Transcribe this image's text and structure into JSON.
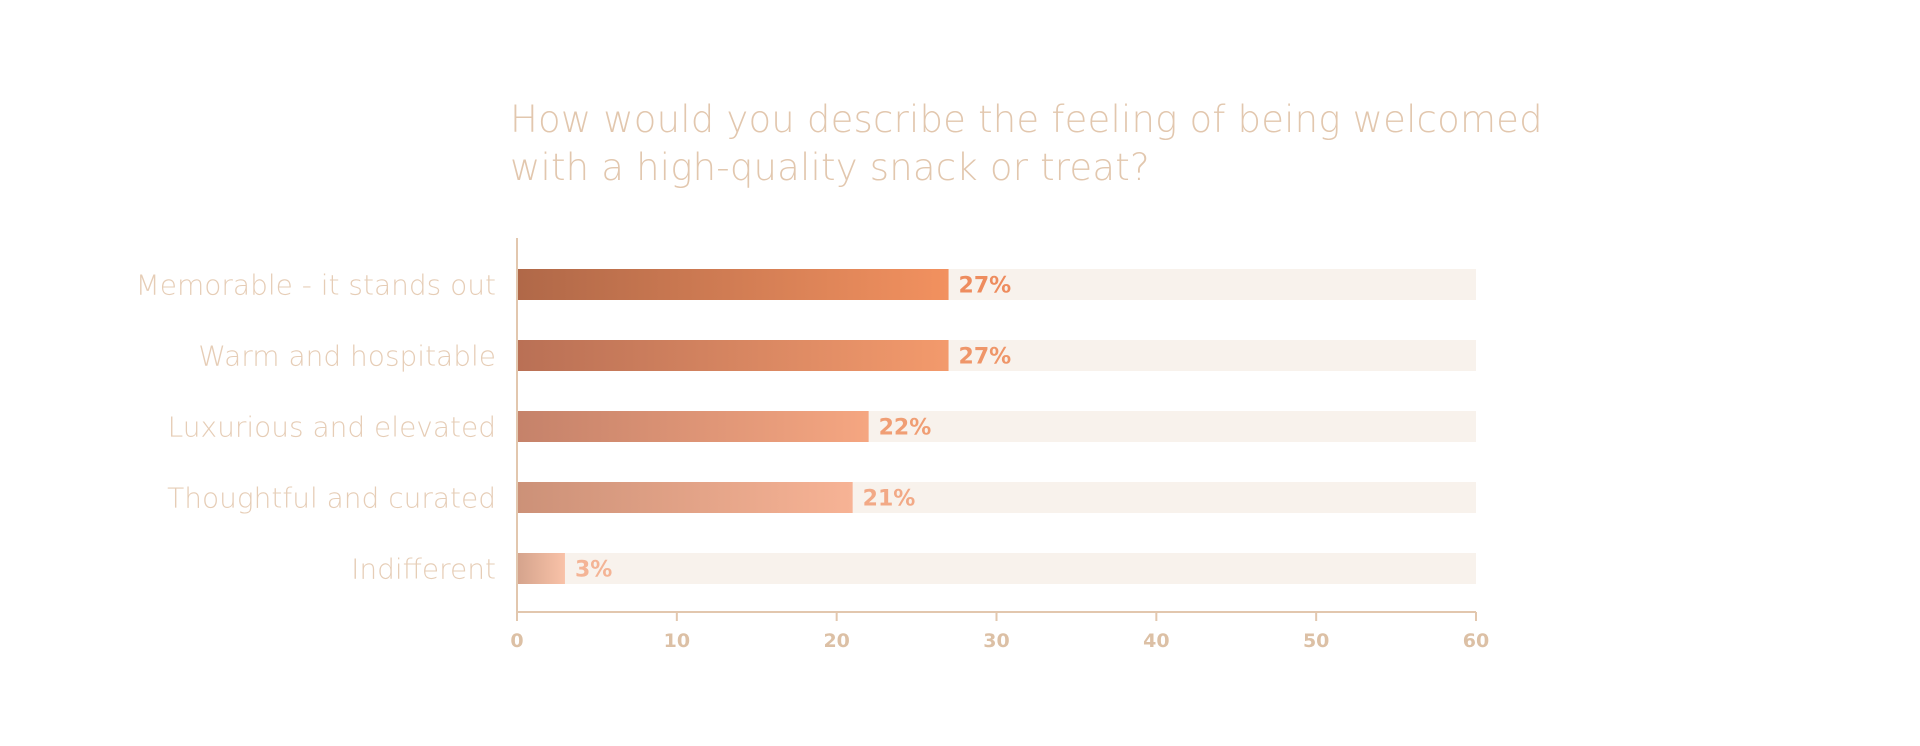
{
  "chart_data": {
    "type": "bar",
    "orientation": "horizontal",
    "title": "How would you describe the feeling of being welcomed with a high-quality snack or treat?",
    "categories": [
      "Memorable - it stands out",
      "Warm and hospitable",
      "Luxurious and elevated",
      "Thoughtful and curated",
      "Indifferent"
    ],
    "values": [
      27,
      27,
      22,
      21,
      3
    ],
    "value_labels": [
      "27%",
      "27%",
      "22%",
      "21%",
      "3%"
    ],
    "xlim": [
      0,
      60
    ],
    "xticks": [
      0,
      10,
      20,
      30,
      40,
      50,
      60
    ],
    "xtick_labels": [
      "0",
      "10",
      "20",
      "30",
      "40",
      "50",
      "60"
    ],
    "grid": false,
    "legend": "none",
    "colors": {
      "title": "#e2c7ae",
      "category_label": "#e6cdb6",
      "axis": "#e2c7ae",
      "tick_label": "#dcc0a5",
      "track": "#f8f2ec",
      "bar_gradients": [
        [
          "#b06848",
          "#f2915f"
        ],
        [
          "#b97055",
          "#f39a6c"
        ],
        [
          "#c5826a",
          "#f5a681"
        ],
        [
          "#cc9178",
          "#f7b395"
        ],
        [
          "#d4a38c",
          "#f9c2a8"
        ]
      ],
      "value_labels": [
        "#ee8c5e",
        "#ef9669",
        "#f09e74",
        "#f2a986",
        "#f4b495"
      ]
    }
  }
}
